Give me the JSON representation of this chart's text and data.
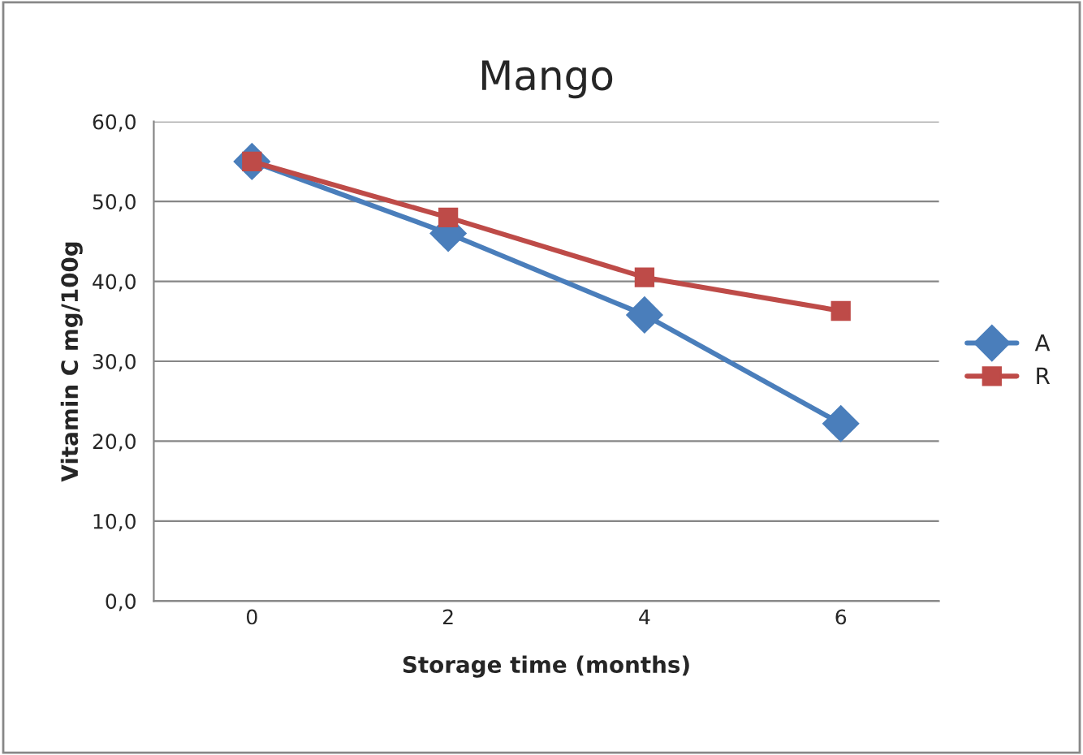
{
  "chart_data": {
    "type": "line",
    "title": "Mango",
    "xlabel": "Storage time (months)",
    "ylabel": "Vitamin C mg/100g",
    "categories": [
      "0",
      "2",
      "4",
      "6"
    ],
    "series": [
      {
        "name": "A",
        "color": "#4a7ebb",
        "marker": "diamond",
        "values": [
          55.0,
          46.0,
          35.8,
          22.2
        ]
      },
      {
        "name": "R",
        "color": "#be4b48",
        "marker": "square",
        "values": [
          55.0,
          48.0,
          40.5,
          36.3
        ]
      }
    ],
    "ylim": [
      0,
      60
    ],
    "yticks": [
      {
        "value": 0,
        "label": "0,0"
      },
      {
        "value": 10,
        "label": "10,0"
      },
      {
        "value": 20,
        "label": "20,0"
      },
      {
        "value": 30,
        "label": "30,0"
      },
      {
        "value": 40,
        "label": "40,0"
      },
      {
        "value": 50,
        "label": "50,0"
      },
      {
        "value": 60,
        "label": "60,0"
      }
    ],
    "grid": "y",
    "legend": "right",
    "line_style": "solid"
  }
}
